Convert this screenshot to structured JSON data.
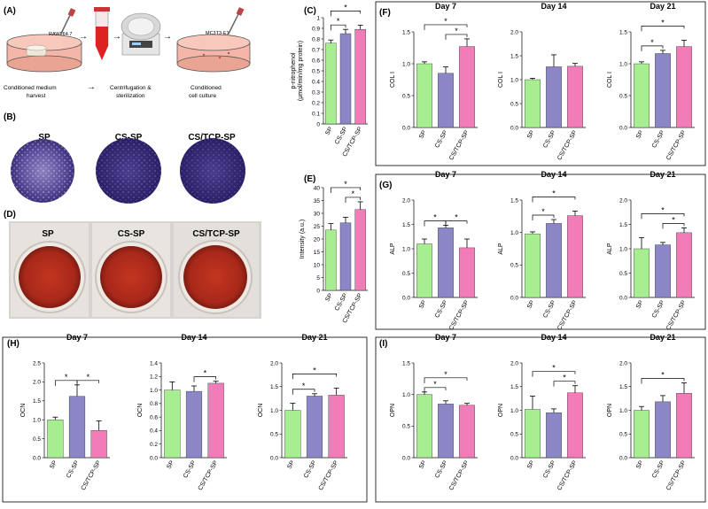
{
  "colors": {
    "sp": "#a6ee8f",
    "cs": "#8b87c7",
    "cstcp": "#f27cb8",
    "axis": "#000000"
  },
  "panels": {
    "A": "(A)",
    "B": "(B)",
    "C": "(C)",
    "D": "(D)",
    "E": "(E)",
    "F": "(F)",
    "G": "(G)",
    "H": "(H)",
    "I": "(I)"
  },
  "schematic": {
    "cell_raw": "RAW264.7",
    "cell_mc": "MC3T3-E1",
    "step1": "Conditioned medium\nharvest",
    "step2": "Centrifugation &\nsterilization",
    "step3": "Conditioned\ncell culture",
    "labels_b": [
      "SP",
      "CS-SP",
      "CS/TCP-SP"
    ],
    "labels_d": [
      "SP",
      "CS-SP",
      "CS/TCP-SP"
    ]
  },
  "chart_data": [
    {
      "id": "C",
      "type": "bar",
      "categories": [
        "SP",
        "CS-SP",
        "CS/TCP-SP"
      ],
      "values": [
        0.76,
        0.85,
        0.89
      ],
      "errors": [
        0.03,
        0.04,
        0.04
      ],
      "ylabel": "p-nitrophenol\n(μmol/min/mg protein)",
      "ylim": [
        0,
        1.0
      ],
      "ticks": [
        0,
        0.1,
        0.2,
        0.3,
        0.4,
        0.5,
        0.6,
        0.7,
        0.8,
        0.9,
        1.0
      ],
      "tickLabels": [
        "0",
        "0.1",
        "0.2",
        "0.3",
        "0.4",
        "0.5",
        "0.6",
        "0.7",
        "0.8",
        "0.9",
        "1"
      ],
      "sig": [
        [
          0,
          1
        ],
        [
          0,
          2
        ]
      ],
      "title": ""
    },
    {
      "id": "E",
      "type": "bar",
      "categories": [
        "SP",
        "CS-SP",
        "CS/TCP-SP"
      ],
      "values": [
        23.5,
        26.3,
        31.5
      ],
      "errors": [
        2.5,
        2.2,
        3.0
      ],
      "ylabel": "Intensity (a.u.)",
      "ylim": [
        0,
        40
      ],
      "ticks": [
        0,
        5,
        10,
        15,
        20,
        25,
        30,
        35,
        40
      ],
      "tickLabels": [
        "0",
        "5",
        "10",
        "15",
        "20",
        "25",
        "30",
        "35",
        "40"
      ],
      "sig": [
        [
          1,
          2
        ],
        [
          0,
          2
        ]
      ],
      "title": ""
    },
    {
      "id": "F1",
      "type": "bar",
      "title": "Day 7",
      "categories": [
        "SP",
        "CS-SP",
        "CS/TCP-SP"
      ],
      "values": [
        1.0,
        0.85,
        1.27
      ],
      "errors": [
        0.03,
        0.1,
        0.12
      ],
      "ylabel": "COL I",
      "ylim": [
        0,
        1.5
      ],
      "ticks": [
        0,
        0.5,
        1.0,
        1.5
      ],
      "tickLabels": [
        "0.0",
        "0.5",
        "1.0",
        "1.5"
      ],
      "sig": [
        [
          1,
          2
        ],
        [
          0,
          2
        ]
      ]
    },
    {
      "id": "F2",
      "type": "bar",
      "title": "Day 14",
      "categories": [
        "SP",
        "CS-SP",
        "CS/TCP-SP"
      ],
      "values": [
        1.0,
        1.27,
        1.28
      ],
      "errors": [
        0.03,
        0.25,
        0.06
      ],
      "ylabel": "COL I",
      "ylim": [
        0,
        2.0
      ],
      "ticks": [
        0,
        0.5,
        1.0,
        1.5,
        2.0
      ],
      "tickLabels": [
        "0.0",
        "0.5",
        "1.0",
        "1.5",
        "2.0"
      ],
      "sig": []
    },
    {
      "id": "F3",
      "type": "bar",
      "title": "Day 21",
      "categories": [
        "SP",
        "CS-SP",
        "CS/TCP-SP"
      ],
      "values": [
        1.0,
        1.16,
        1.27
      ],
      "errors": [
        0.03,
        0.05,
        0.1
      ],
      "ylabel": "COL I",
      "ylim": [
        0,
        1.5
      ],
      "ticks": [
        0,
        0.5,
        1.0,
        1.5
      ],
      "tickLabels": [
        "0.0",
        "0.5",
        "1.0",
        "1.5"
      ],
      "sig": [
        [
          0,
          1
        ],
        [
          0,
          2
        ]
      ]
    },
    {
      "id": "G1",
      "type": "bar",
      "title": "Day 7",
      "categories": [
        "SP",
        "CS-SP",
        "CS/TCP-SP"
      ],
      "values": [
        1.1,
        1.43,
        1.02
      ],
      "errors": [
        0.1,
        0.05,
        0.18
      ],
      "ylabel": "ALP",
      "ylim": [
        0,
        2.0
      ],
      "ticks": [
        0,
        0.5,
        1.0,
        1.5,
        2.0
      ],
      "tickLabels": [
        "0.0",
        "0.5",
        "1.0",
        "1.5",
        "2.0"
      ],
      "sig": [
        [
          0,
          1
        ],
        [
          1,
          2
        ]
      ]
    },
    {
      "id": "G2",
      "type": "bar",
      "title": "Day 14",
      "categories": [
        "SP",
        "CS-SP",
        "CS/TCP-SP"
      ],
      "values": [
        0.98,
        1.14,
        1.26
      ],
      "errors": [
        0.03,
        0.06,
        0.07
      ],
      "ylabel": "ALP",
      "ylim": [
        0,
        1.5
      ],
      "ticks": [
        0,
        0.5,
        1.0,
        1.5
      ],
      "tickLabels": [
        "0.0",
        "0.5",
        "1.0",
        "1.5"
      ],
      "sig": [
        [
          0,
          1
        ],
        [
          0,
          2
        ]
      ]
    },
    {
      "id": "G3",
      "type": "bar",
      "title": "Day 21",
      "categories": [
        "SP",
        "CS-SP",
        "CS/TCP-SP"
      ],
      "values": [
        1.0,
        1.08,
        1.33
      ],
      "errors": [
        0.23,
        0.05,
        0.1
      ],
      "ylabel": "ALP",
      "ylim": [
        0,
        2.0
      ],
      "ticks": [
        0,
        0.5,
        1.0,
        1.5,
        2.0
      ],
      "tickLabels": [
        "0.0",
        "0.5",
        "1.0",
        "1.5",
        "2.0"
      ],
      "sig": [
        [
          1,
          2
        ],
        [
          0,
          2
        ]
      ]
    },
    {
      "id": "H1",
      "type": "bar",
      "title": "Day 7",
      "categories": [
        "SP",
        "CS-SP",
        "CS/TCP-SP"
      ],
      "values": [
        1.0,
        1.62,
        0.72
      ],
      "errors": [
        0.07,
        0.3,
        0.25
      ],
      "ylabel": "OCN",
      "ylim": [
        0,
        2.5
      ],
      "ticks": [
        0,
        0.5,
        1.0,
        1.5,
        2.0,
        2.5
      ],
      "tickLabels": [
        "0.0",
        "0.5",
        "1.0",
        "1.5",
        "2.0",
        "2.5"
      ],
      "sig": [
        [
          0,
          1
        ],
        [
          1,
          2
        ]
      ]
    },
    {
      "id": "H2",
      "type": "bar",
      "title": "Day 14",
      "categories": [
        "SP",
        "CS-SP",
        "CS/TCP-SP"
      ],
      "values": [
        1.0,
        0.98,
        1.1
      ],
      "errors": [
        0.12,
        0.08,
        0.03
      ],
      "ylabel": "OCN",
      "ylim": [
        0,
        1.4
      ],
      "ticks": [
        0,
        0.2,
        0.4,
        0.6,
        0.8,
        1.0,
        1.2,
        1.4
      ],
      "tickLabels": [
        "0.0",
        "0.2",
        "0.4",
        "0.6",
        "0.8",
        "1.0",
        "1.2",
        "1.4"
      ],
      "sig": [
        [
          1,
          2
        ]
      ]
    },
    {
      "id": "H3",
      "type": "bar",
      "title": "Day 21",
      "categories": [
        "SP",
        "CS-SP",
        "CS/TCP-SP"
      ],
      "values": [
        1.0,
        1.3,
        1.32
      ],
      "errors": [
        0.15,
        0.05,
        0.15
      ],
      "ylabel": "OCN",
      "ylim": [
        0,
        2.0
      ],
      "ticks": [
        0,
        0.5,
        1.0,
        1.5,
        2.0
      ],
      "tickLabels": [
        "0.0",
        "0.5",
        "1.0",
        "1.5",
        "2.0"
      ],
      "sig": [
        [
          0,
          1
        ],
        [
          0,
          2
        ]
      ]
    },
    {
      "id": "I1",
      "type": "bar",
      "title": "Day 7",
      "categories": [
        "SP",
        "CS-SP",
        "CS/TCP-SP"
      ],
      "values": [
        1.0,
        0.85,
        0.83
      ],
      "errors": [
        0.04,
        0.05,
        0.03
      ],
      "ylabel": "OPN",
      "ylim": [
        0,
        1.5
      ],
      "ticks": [
        0,
        0.5,
        1.0,
        1.5
      ],
      "tickLabels": [
        "0.0",
        "0.5",
        "1.0",
        "1.5"
      ],
      "sig": [
        [
          0,
          1
        ],
        [
          0,
          2
        ]
      ]
    },
    {
      "id": "I2",
      "type": "bar",
      "title": "Day 14",
      "categories": [
        "SP",
        "CS-SP",
        "CS/TCP-SP"
      ],
      "values": [
        1.02,
        0.95,
        1.37
      ],
      "errors": [
        0.28,
        0.08,
        0.15
      ],
      "ylabel": "OPN",
      "ylim": [
        0,
        2.0
      ],
      "ticks": [
        0,
        0.5,
        1.0,
        1.5,
        2.0
      ],
      "tickLabels": [
        "0.0",
        "0.5",
        "1.0",
        "1.5",
        "2.0"
      ],
      "sig": [
        [
          1,
          2
        ],
        [
          0,
          2
        ]
      ]
    },
    {
      "id": "I3",
      "type": "bar",
      "title": "Day 21",
      "categories": [
        "SP",
        "CS-SP",
        "CS/TCP-SP"
      ],
      "values": [
        1.0,
        1.18,
        1.36
      ],
      "errors": [
        0.08,
        0.13,
        0.22
      ],
      "ylabel": "OPN",
      "ylim": [
        0,
        2.0
      ],
      "ticks": [
        0,
        0.5,
        1.0,
        1.5,
        2.0
      ],
      "tickLabels": [
        "0.0",
        "0.5",
        "1.0",
        "1.5",
        "2.0"
      ],
      "sig": [
        [
          0,
          2
        ]
      ]
    }
  ],
  "sig_mark": "*"
}
